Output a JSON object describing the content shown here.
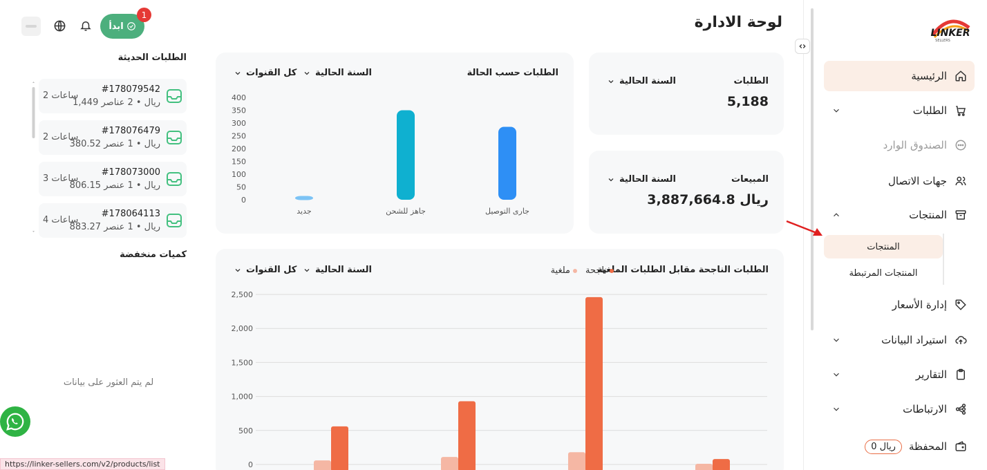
{
  "page": {
    "title": "لوحة الادارة"
  },
  "topbar": {
    "start_label": "ابدأ",
    "start_badge": "1"
  },
  "sidebar": {
    "logo_text": "LINKER",
    "logo_sub": "SELLERS",
    "items": [
      {
        "label": "الرئيسية",
        "icon": "home-icon"
      },
      {
        "label": "الطلبات",
        "icon": "cart-icon"
      },
      {
        "label": "الصندوق الوارد",
        "icon": "chat-icon"
      },
      {
        "label": "جهات الاتصال",
        "icon": "users-icon"
      },
      {
        "label": "المنتجات",
        "icon": "box-icon"
      },
      {
        "label": "إدارة الأسعار",
        "icon": "tag-icon"
      },
      {
        "label": "استيراد البيانات",
        "icon": "upload-cloud-icon"
      },
      {
        "label": "التقارير",
        "icon": "clipboard-icon"
      },
      {
        "label": "الارتباطات",
        "icon": "share-nodes-icon"
      },
      {
        "label": "المحفظة",
        "icon": "wallet-icon"
      }
    ],
    "sub_items": [
      {
        "label": "المنتجات"
      },
      {
        "label": "المنتجات المرتبطة"
      }
    ],
    "wallet_amount": "0 ريال"
  },
  "stats": {
    "orders": {
      "title": "الطلبات",
      "filter": "السنة الحالية",
      "value": "5,188"
    },
    "sales": {
      "title": "المبيعات",
      "filter": "السنة الحالية",
      "value": "3,887,664.8 ريال"
    }
  },
  "status_chart_card": {
    "title": "الطلبات حسب الحالة",
    "filter_year": "السنة الحالية",
    "filter_channel": "كل القنوات"
  },
  "compare_chart_card": {
    "title": "الطلبات الناجحة مقابل الطلبات الملغية",
    "legend_success": "ناجحة",
    "legend_cancel": "ملغية",
    "filter_year": "السنة الحالية",
    "filter_channel": "كل القنوات"
  },
  "chart_data": [
    {
      "type": "bar",
      "title": "الطلبات حسب الحالة",
      "categories": [
        "جارى التوصيل",
        "جاهز للشحن",
        "جديد"
      ],
      "values": [
        285,
        350,
        15
      ],
      "yticks": [
        "400",
        "350",
        "300",
        "250",
        "200",
        "150",
        "100",
        "50",
        "0"
      ],
      "ylim": [
        0,
        400
      ],
      "colors": [
        "#2e8ff5",
        "#0fb0d0",
        "#7cc3f5"
      ]
    },
    {
      "type": "bar",
      "title": "الطلبات الناجحة مقابل الطلبات الملغية",
      "yticks": [
        "2,500",
        "2,000",
        "1,500",
        "1,000",
        "500",
        "0"
      ],
      "ylim": [
        0,
        2500
      ],
      "series": [
        {
          "name": "ناجحة",
          "values": [
            80,
            2460,
            930,
            560
          ],
          "color": "#ef6c45"
        },
        {
          "name": "ملغية",
          "values": [
            10,
            180,
            110,
            60
          ],
          "color": "#f5b7a4"
        }
      ],
      "legend": "top-right",
      "grid": true
    }
  ],
  "recent_orders": {
    "title": "الطلبات الحديثة",
    "items": [
      {
        "id": "#178079542",
        "detail": "1,449 ريال • 2 عناصر",
        "time": "2 ساعات"
      },
      {
        "id": "#178076479",
        "detail": "380.52 ريال • 1 عنصر",
        "time": "2 ساعات"
      },
      {
        "id": "#178073000",
        "detail": "806.15 ريال • 1 عنصر",
        "time": "3 ساعات"
      },
      {
        "id": "#178064113",
        "detail": "883.27 ريال • 1 عنصر",
        "time": "4 ساعات"
      }
    ]
  },
  "low_stock": {
    "title": "كميات منخفضة",
    "empty": "لم يتم العثور على بيانات"
  },
  "status_url": "https://linker-sellers.com/v2/products/list"
}
